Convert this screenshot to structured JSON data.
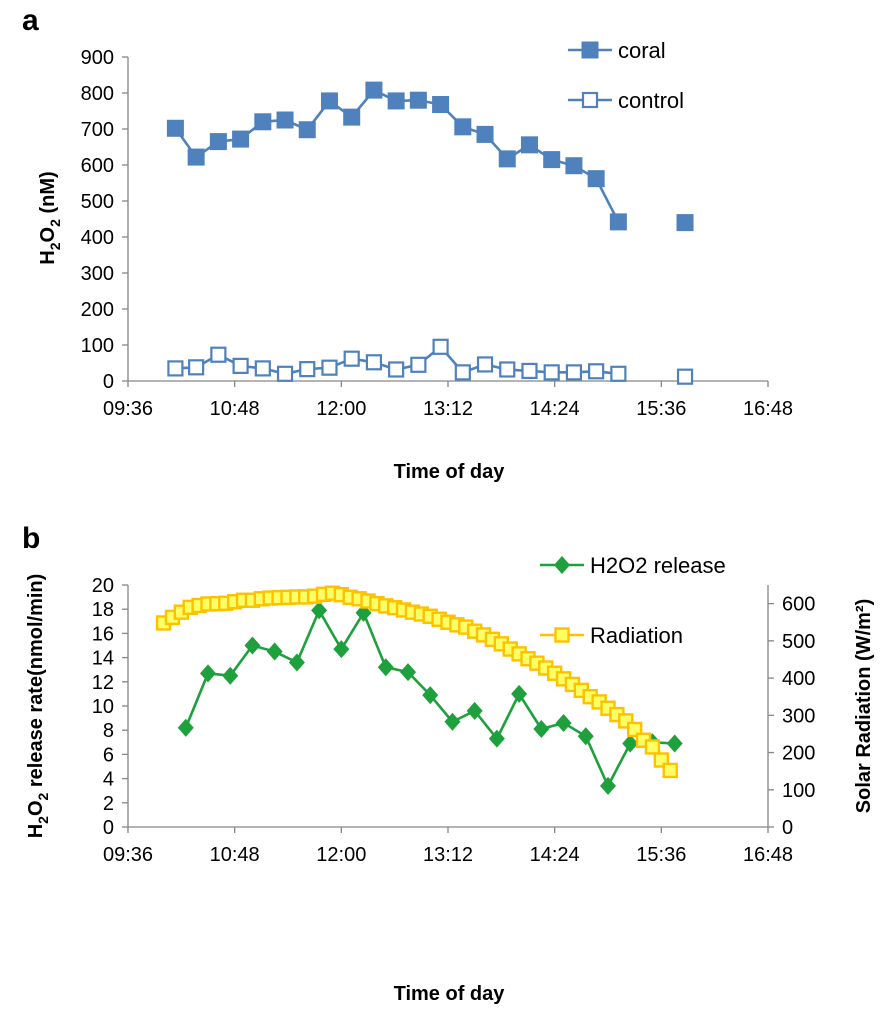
{
  "chart_data": [
    {
      "panel_label": "a",
      "type": "line",
      "xlabel": "Time of day",
      "ylabel_main": "H",
      "ylabel_sub": "2",
      "ylabel_main2": "O",
      "ylabel_sub2": "2",
      "ylabel_rest": " (nM)",
      "xticks": [
        "09:36",
        "10:48",
        "12:00",
        "13:12",
        "14:24",
        "15:36",
        "16:48"
      ],
      "xlim_minutes": [
        576,
        1008
      ],
      "ylim": [
        0,
        900
      ],
      "yticks": [
        "0",
        "100",
        "200",
        "300",
        "400",
        "500",
        "600",
        "700",
        "800",
        "900"
      ],
      "grid": false,
      "legend_position": "top-right",
      "series": [
        {
          "name": "coral",
          "color": "#4f81bd",
          "marker": "filled-square",
          "segments": [
            [
              {
                "x": "10:08",
                "y": 702
              },
              {
                "x": "10:22",
                "y": 622
              },
              {
                "x": "10:37",
                "y": 665
              },
              {
                "x": "10:52",
                "y": 672
              },
              {
                "x": "11:07",
                "y": 720
              },
              {
                "x": "11:22",
                "y": 725
              },
              {
                "x": "11:37",
                "y": 698
              },
              {
                "x": "11:52",
                "y": 778
              },
              {
                "x": "12:07",
                "y": 733
              },
              {
                "x": "12:22",
                "y": 808
              },
              {
                "x": "12:37",
                "y": 778
              },
              {
                "x": "12:52",
                "y": 780
              },
              {
                "x": "13:07",
                "y": 768
              },
              {
                "x": "13:22",
                "y": 706
              },
              {
                "x": "13:37",
                "y": 685
              },
              {
                "x": "13:52",
                "y": 617
              },
              {
                "x": "14:07",
                "y": 656
              },
              {
                "x": "14:22",
                "y": 615
              },
              {
                "x": "14:37",
                "y": 598
              },
              {
                "x": "14:52",
                "y": 562
              },
              {
                "x": "15:07",
                "y": 442
              }
            ],
            [
              {
                "x": "15:52",
                "y": 440
              }
            ]
          ]
        },
        {
          "name": "control",
          "color": "#4f81bd",
          "marker": "open-square",
          "segments": [
            [
              {
                "x": "10:08",
                "y": 35
              },
              {
                "x": "10:22",
                "y": 38
              },
              {
                "x": "10:37",
                "y": 73
              },
              {
                "x": "10:52",
                "y": 42
              },
              {
                "x": "11:07",
                "y": 35
              },
              {
                "x": "11:22",
                "y": 20
              },
              {
                "x": "11:37",
                "y": 33
              },
              {
                "x": "11:52",
                "y": 37
              },
              {
                "x": "12:07",
                "y": 62
              },
              {
                "x": "12:22",
                "y": 52
              },
              {
                "x": "12:37",
                "y": 32
              },
              {
                "x": "12:52",
                "y": 45
              },
              {
                "x": "13:07",
                "y": 95
              },
              {
                "x": "13:22",
                "y": 24
              },
              {
                "x": "13:37",
                "y": 46
              },
              {
                "x": "13:52",
                "y": 32
              },
              {
                "x": "14:07",
                "y": 28
              },
              {
                "x": "14:22",
                "y": 24
              },
              {
                "x": "14:37",
                "y": 24
              },
              {
                "x": "14:52",
                "y": 27
              },
              {
                "x": "15:07",
                "y": 20
              }
            ],
            [
              {
                "x": "15:52",
                "y": 12
              }
            ]
          ]
        }
      ]
    },
    {
      "panel_label": "b",
      "type": "line",
      "xlabel": "Time of day",
      "ylabel_main": "H",
      "ylabel_sub": "2",
      "ylabel_main2": "O",
      "ylabel_sub2": "2",
      "ylabel_rest": " release rate(nmol/min)",
      "y2label": "Solar Radiation (W/m²)",
      "xticks": [
        "09:36",
        "10:48",
        "12:00",
        "13:12",
        "14:24",
        "15:36",
        "16:48"
      ],
      "xlim_minutes": [
        576,
        1008
      ],
      "ylim": [
        0,
        20
      ],
      "yticks": [
        "0",
        "2",
        "4",
        "6",
        "8",
        "10",
        "12",
        "14",
        "16",
        "18",
        "20"
      ],
      "y2lim": [
        0,
        650
      ],
      "y2ticks": [
        "0",
        "100",
        "200",
        "300",
        "400",
        "500",
        "600"
      ],
      "grid": false,
      "legend_position": "top-right",
      "series": [
        {
          "name": "H2O2 release",
          "axis": "left",
          "color": "#1ea03c",
          "marker": "diamond",
          "segments": [
            [
              {
                "x": "10:15",
                "y": 8.2
              },
              {
                "x": "10:30",
                "y": 12.7
              },
              {
                "x": "10:45",
                "y": 12.5
              },
              {
                "x": "11:00",
                "y": 15.0
              },
              {
                "x": "11:15",
                "y": 14.5
              },
              {
                "x": "11:30",
                "y": 13.6
              },
              {
                "x": "11:45",
                "y": 17.9
              },
              {
                "x": "12:00",
                "y": 14.7
              },
              {
                "x": "12:15",
                "y": 17.7
              },
              {
                "x": "12:30",
                "y": 13.2
              },
              {
                "x": "12:45",
                "y": 12.8
              },
              {
                "x": "13:00",
                "y": 10.9
              },
              {
                "x": "13:15",
                "y": 8.7
              },
              {
                "x": "13:30",
                "y": 9.6
              },
              {
                "x": "13:45",
                "y": 7.3
              },
              {
                "x": "14:00",
                "y": 11.0
              },
              {
                "x": "14:15",
                "y": 8.1
              },
              {
                "x": "14:30",
                "y": 8.6
              },
              {
                "x": "14:45",
                "y": 7.5
              },
              {
                "x": "15:00",
                "y": 3.4
              },
              {
                "x": "15:15",
                "y": 6.9
              },
              {
                "x": "15:30",
                "y": 7.0
              },
              {
                "x": "15:45",
                "y": 6.9
              }
            ]
          ]
        },
        {
          "name": "Radiation",
          "axis": "right",
          "color": "#ffc000",
          "marker_fill": "#ffff66",
          "marker": "square",
          "segments": [
            [
              {
                "x": "10:00",
                "y": 548
              },
              {
                "x": "10:06",
                "y": 563
              },
              {
                "x": "10:12",
                "y": 577
              },
              {
                "x": "10:18",
                "y": 590
              },
              {
                "x": "10:24",
                "y": 595
              },
              {
                "x": "10:30",
                "y": 599
              },
              {
                "x": "10:36",
                "y": 600
              },
              {
                "x": "10:42",
                "y": 601
              },
              {
                "x": "10:48",
                "y": 605
              },
              {
                "x": "10:54",
                "y": 609
              },
              {
                "x": "11:00",
                "y": 609
              },
              {
                "x": "11:06",
                "y": 613
              },
              {
                "x": "11:12",
                "y": 615
              },
              {
                "x": "11:18",
                "y": 616
              },
              {
                "x": "11:24",
                "y": 617
              },
              {
                "x": "11:30",
                "y": 618
              },
              {
                "x": "11:36",
                "y": 618
              },
              {
                "x": "11:42",
                "y": 620
              },
              {
                "x": "11:48",
                "y": 625
              },
              {
                "x": "11:54",
                "y": 628
              },
              {
                "x": "12:00",
                "y": 624
              },
              {
                "x": "12:06",
                "y": 617
              },
              {
                "x": "12:12",
                "y": 613
              },
              {
                "x": "12:18",
                "y": 607
              },
              {
                "x": "12:24",
                "y": 600
              },
              {
                "x": "12:30",
                "y": 594
              },
              {
                "x": "12:36",
                "y": 589
              },
              {
                "x": "12:42",
                "y": 583
              },
              {
                "x": "12:48",
                "y": 577
              },
              {
                "x": "12:54",
                "y": 572
              },
              {
                "x": "13:00",
                "y": 566
              },
              {
                "x": "13:06",
                "y": 558
              },
              {
                "x": "13:12",
                "y": 550
              },
              {
                "x": "13:18",
                "y": 543
              },
              {
                "x": "13:24",
                "y": 537
              },
              {
                "x": "13:30",
                "y": 526
              },
              {
                "x": "13:36",
                "y": 516
              },
              {
                "x": "13:42",
                "y": 504
              },
              {
                "x": "13:48",
                "y": 492
              },
              {
                "x": "13:54",
                "y": 478
              },
              {
                "x": "14:00",
                "y": 465
              },
              {
                "x": "14:06",
                "y": 452
              },
              {
                "x": "14:12",
                "y": 440
              },
              {
                "x": "14:18",
                "y": 427
              },
              {
                "x": "14:24",
                "y": 413
              },
              {
                "x": "14:30",
                "y": 398
              },
              {
                "x": "14:36",
                "y": 383
              },
              {
                "x": "14:42",
                "y": 367
              },
              {
                "x": "14:48",
                "y": 350
              },
              {
                "x": "14:54",
                "y": 336
              },
              {
                "x": "15:00",
                "y": 319
              },
              {
                "x": "15:06",
                "y": 302
              },
              {
                "x": "15:12",
                "y": 285
              },
              {
                "x": "15:18",
                "y": 262
              },
              {
                "x": "15:24",
                "y": 233
              },
              {
                "x": "15:30",
                "y": 215
              },
              {
                "x": "15:36",
                "y": 180
              },
              {
                "x": "15:42",
                "y": 152
              }
            ]
          ]
        }
      ]
    }
  ]
}
